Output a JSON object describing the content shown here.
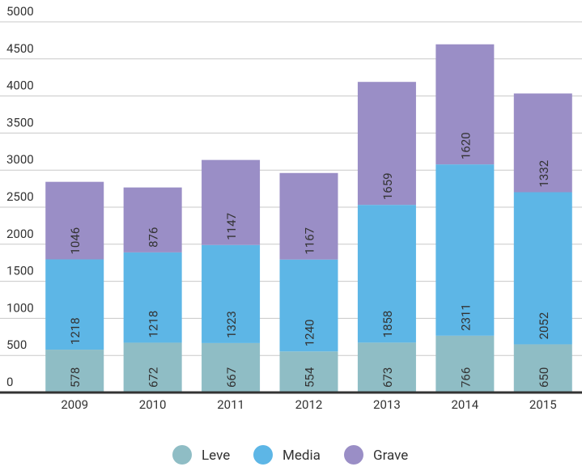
{
  "chart_data": {
    "type": "stacked_bar",
    "categories": [
      "2009",
      "2010",
      "2011",
      "2012",
      "2013",
      "2014",
      "2015"
    ],
    "series": [
      {
        "name": "Leve",
        "color": "#8fbdc5",
        "values": [
          578,
          672,
          667,
          554,
          673,
          766,
          650
        ]
      },
      {
        "name": "Media",
        "color": "#5db6e6",
        "values": [
          1218,
          1218,
          1323,
          1240,
          1858,
          2311,
          2052
        ]
      },
      {
        "name": "Grave",
        "color": "#9a8ec6",
        "values": [
          1046,
          876,
          1147,
          1167,
          1659,
          1620,
          1332
        ]
      }
    ],
    "ylim": [
      0,
      5000
    ],
    "yticks": [
      0,
      500,
      1000,
      1500,
      2000,
      2500,
      3000,
      3500,
      4000,
      4500,
      5000
    ],
    "grid": true,
    "legend": "bottom"
  }
}
